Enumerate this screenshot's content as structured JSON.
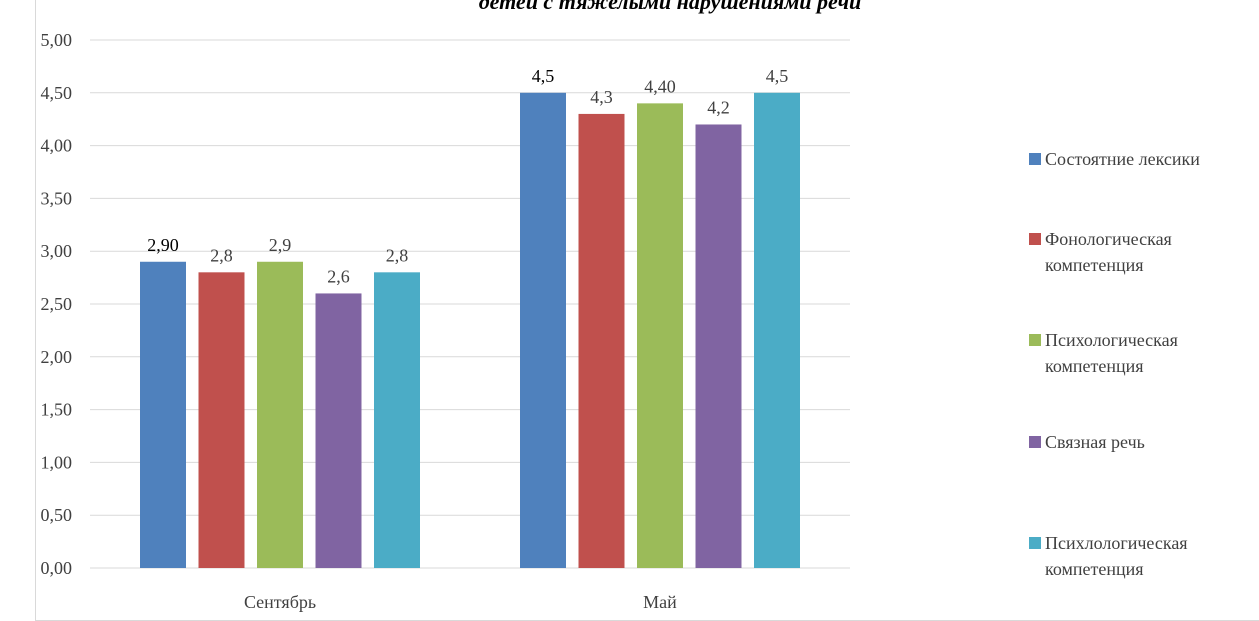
{
  "chart_data": {
    "type": "bar",
    "title": "детей с тяжелыми нарушениями речи",
    "categories": [
      "Сентябрь",
      "Май"
    ],
    "series": [
      {
        "name": "Состоятние лексики",
        "color": "#4f81bd",
        "values": [
          2.9,
          4.5
        ],
        "labels": [
          "2,90",
          "4,5"
        ]
      },
      {
        "name": "Фонологическая компетенция",
        "color": "#c0504d",
        "values": [
          2.8,
          4.3
        ],
        "labels": [
          "2,8",
          "4,3"
        ]
      },
      {
        "name": "Психологическая компетенция",
        "color": "#9bbb59",
        "values": [
          2.9,
          4.4
        ],
        "labels": [
          "2,9",
          "4,40"
        ]
      },
      {
        "name": "Связная речь",
        "color": "#8064a2",
        "values": [
          2.6,
          4.2
        ],
        "labels": [
          "2,6",
          "4,2"
        ]
      },
      {
        "name": "Психлологическая компетенция",
        "color": "#4bacc6",
        "values": [
          2.8,
          4.5
        ],
        "labels": [
          "2,8",
          "4,5"
        ]
      }
    ],
    "ylim": [
      0,
      5
    ],
    "yticks": [
      "0,00",
      "0,50",
      "1,00",
      "1,50",
      "2,00",
      "2,50",
      "3,00",
      "3,50",
      "4,00",
      "4,50",
      "5,00"
    ],
    "grid": true,
    "legend_position": "right",
    "xlabel": "",
    "ylabel": ""
  }
}
